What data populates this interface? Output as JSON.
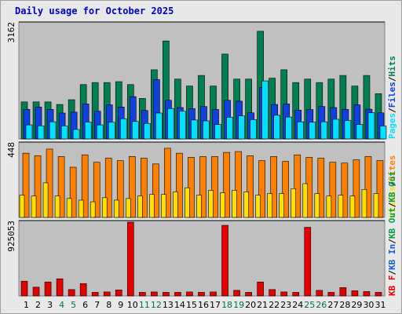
{
  "title": "Daily usage for October 2025",
  "colors": {
    "pages": "#00e0ff",
    "files": "#1040e0",
    "hits": "#008050",
    "visits": "#ffe000",
    "sites": "#ff8000",
    "kb_f": "#e80000",
    "kb_in": "#1060d0",
    "kb_out": "#00a040",
    "weekend": "#007050",
    "weekday": "#000000",
    "panel": "#c0c0c0"
  },
  "chart_data": [
    {
      "type": "bar",
      "panel": "hits",
      "ymax_label": "3162",
      "ylim": [
        0,
        3162
      ],
      "legend": [
        "Pages",
        "/",
        "Files",
        "/",
        "Hits"
      ],
      "categories": [
        "1",
        "2",
        "3",
        "4",
        "5",
        "6",
        "7",
        "8",
        "9",
        "10",
        "11",
        "12",
        "13",
        "14",
        "15",
        "16",
        "17",
        "18",
        "19",
        "20",
        "21",
        "22",
        "23",
        "24",
        "25",
        "26",
        "27",
        "28",
        "29",
        "30",
        "31"
      ],
      "series": [
        {
          "name": "Hits",
          "values": [
            1015,
            1015,
            1015,
            945,
            1075,
            1490,
            1545,
            1545,
            1570,
            1490,
            1110,
            1895,
            2685,
            1640,
            1450,
            1740,
            1450,
            2325,
            1640,
            1640,
            2950,
            1665,
            1895,
            1545,
            1640,
            1545,
            1640,
            1740,
            1450,
            1740,
            1240
          ]
        },
        {
          "name": "Files",
          "values": [
            810,
            875,
            810,
            710,
            735,
            960,
            760,
            935,
            875,
            1160,
            780,
            1625,
            1060,
            860,
            830,
            890,
            810,
            1060,
            1035,
            715,
            1410,
            945,
            960,
            790,
            805,
            890,
            860,
            810,
            935,
            815,
            715
          ]
        },
        {
          "name": "Pages",
          "values": [
            385,
            360,
            470,
            355,
            260,
            460,
            385,
            460,
            555,
            480,
            425,
            710,
            835,
            760,
            520,
            495,
            395,
            595,
            630,
            530,
            1590,
            650,
            600,
            470,
            460,
            470,
            540,
            505,
            395,
            720,
            355
          ]
        }
      ]
    },
    {
      "type": "bar",
      "panel": "visits",
      "ymax_label": "448",
      "ylim": [
        0,
        448
      ],
      "legend": [
        "Visits",
        "/",
        "Sites"
      ],
      "categories": [
        "1",
        "2",
        "3",
        "4",
        "5",
        "6",
        "7",
        "8",
        "9",
        "10",
        "11",
        "12",
        "13",
        "14",
        "15",
        "16",
        "17",
        "18",
        "19",
        "20",
        "21",
        "22",
        "23",
        "24",
        "25",
        "26",
        "27",
        "28",
        "29",
        "30",
        "31"
      ],
      "series": [
        {
          "name": "Sites",
          "values": [
            390,
            375,
            415,
            370,
            305,
            380,
            335,
            360,
            345,
            370,
            360,
            325,
            420,
            390,
            365,
            370,
            370,
            395,
            400,
            375,
            345,
            370,
            340,
            380,
            365,
            360,
            335,
            330,
            350,
            370,
            345
          ]
        },
        {
          "name": "Visits",
          "values": [
            135,
            130,
            210,
            130,
            115,
            105,
            95,
            120,
            105,
            115,
            130,
            140,
            140,
            155,
            180,
            135,
            165,
            150,
            165,
            155,
            135,
            145,
            145,
            175,
            205,
            145,
            130,
            135,
            130,
            170,
            145
          ]
        }
      ]
    },
    {
      "type": "bar",
      "panel": "kbytes",
      "ymax_label": "925053",
      "ylim": [
        0,
        925053
      ],
      "legend": [
        "KB F",
        "/",
        "KB In",
        "/",
        "KB Out",
        "/",
        "KB Out"
      ],
      "categories": [
        "1",
        "2",
        "3",
        "4",
        "5",
        "6",
        "7",
        "8",
        "9",
        "10",
        "11",
        "12",
        "13",
        "14",
        "15",
        "16",
        "17",
        "18",
        "19",
        "20",
        "21",
        "22",
        "23",
        "24",
        "25",
        "26",
        "27",
        "28",
        "29",
        "30",
        "31"
      ],
      "series": [
        {
          "name": "KB F",
          "values": [
            185000,
            110000,
            175000,
            215000,
            80000,
            155000,
            45000,
            50000,
            75000,
            925053,
            45000,
            50000,
            45000,
            45000,
            50000,
            45000,
            50000,
            885000,
            70000,
            45000,
            175000,
            80000,
            50000,
            45000,
            860000,
            70000,
            45000,
            105000,
            65000,
            55000,
            45000
          ]
        }
      ]
    }
  ],
  "day_labels": [
    "1",
    "2",
    "3",
    "4",
    "5",
    "6",
    "7",
    "8",
    "9",
    "10",
    "11",
    "12",
    "13",
    "14",
    "15",
    "16",
    "17",
    "18",
    "19",
    "20",
    "21",
    "22",
    "23",
    "24",
    "25",
    "26",
    "27",
    "28",
    "29",
    "30",
    "31"
  ],
  "weekend_days": [
    "4",
    "5",
    "11",
    "12",
    "18",
    "19",
    "25",
    "26"
  ]
}
